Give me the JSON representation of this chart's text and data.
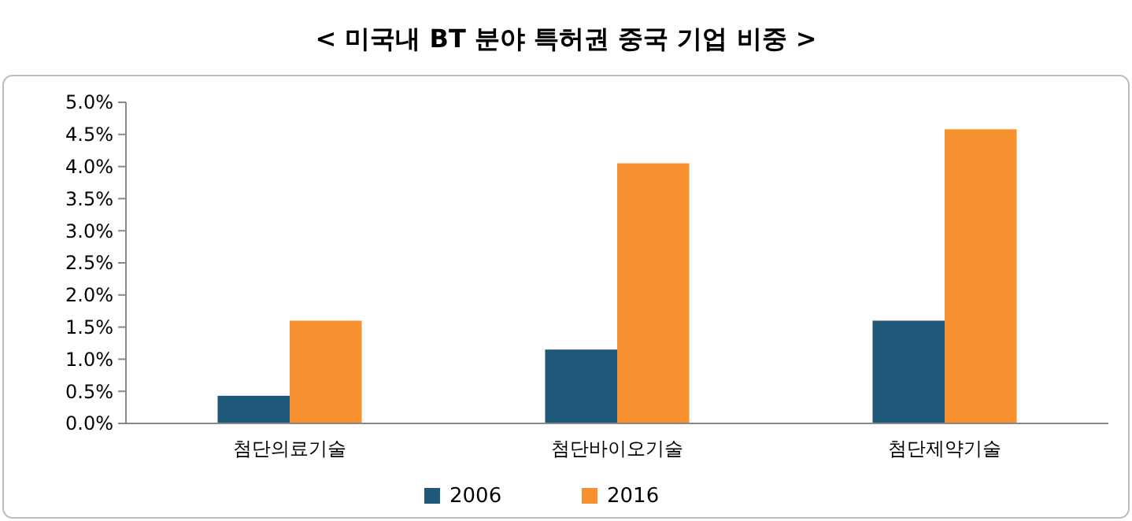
{
  "chart_data": {
    "type": "bar",
    "title": "< 미국내 BT 분야 특허권 중국 기업 비중 >",
    "categories": [
      "첨단의료기술",
      "첨단바이오기술",
      "첨단제약기술"
    ],
    "series": [
      {
        "name": "2006",
        "color": "#1f5878",
        "values": [
          0.43,
          1.15,
          1.6
        ]
      },
      {
        "name": "2016",
        "color": "#f7902f",
        "values": [
          1.6,
          4.05,
          4.58
        ]
      }
    ],
    "ylim": [
      0,
      5
    ],
    "yticks": [
      {
        "value": 0,
        "label": "0.0%"
      },
      {
        "value": 0.5,
        "label": "0.5%"
      },
      {
        "value": 1,
        "label": "1.0%"
      },
      {
        "value": 1.5,
        "label": "1.5%"
      },
      {
        "value": 2,
        "label": "2.0%"
      },
      {
        "value": 2.5,
        "label": "2.5%"
      },
      {
        "value": 3,
        "label": "3.0%"
      },
      {
        "value": 3.5,
        "label": "3.5%"
      },
      {
        "value": 4,
        "label": "4.0%"
      },
      {
        "value": 4.5,
        "label": "4.5%"
      },
      {
        "value": 5,
        "label": "5.0%"
      }
    ],
    "legend": "bottom"
  }
}
